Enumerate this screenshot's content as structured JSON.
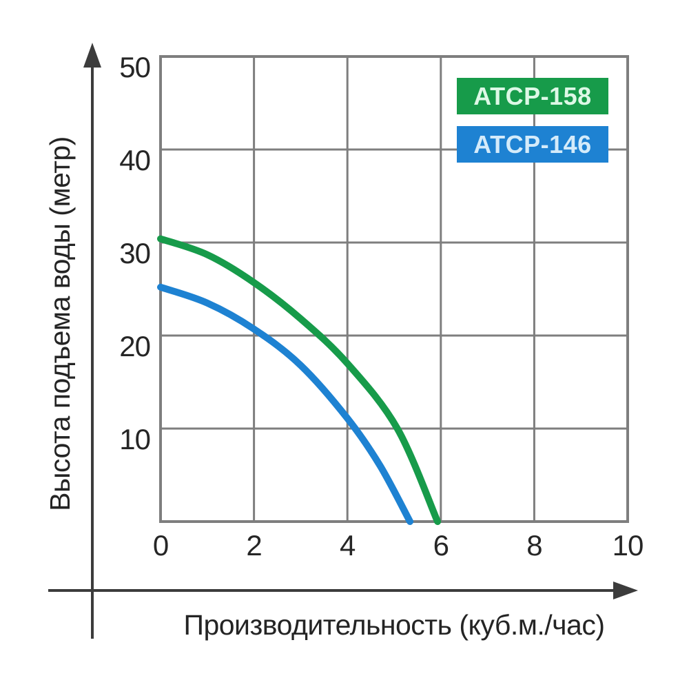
{
  "chart_data": {
    "type": "line",
    "title": "",
    "xlabel": "Производительность (куб.м./час)",
    "ylabel": "Высота подъема воды (метр)",
    "xlim": [
      0,
      10
    ],
    "ylim": [
      0,
      50
    ],
    "x_ticks": [
      0,
      2,
      4,
      6,
      8,
      10
    ],
    "y_ticks": [
      50,
      40,
      30,
      20,
      10
    ],
    "grid": true,
    "grid_step": {
      "x": 2,
      "y": 10
    },
    "legend_position": "top-right-inside",
    "series": [
      {
        "name": "ATCP-158",
        "color": "#179b4a",
        "label_text_color": "#ddf8e6",
        "points": [
          [
            0,
            30.4
          ],
          [
            1,
            28.7
          ],
          [
            2,
            25.7
          ],
          [
            3,
            21.8
          ],
          [
            4,
            17.0
          ],
          [
            5.07,
            10.0
          ],
          [
            5.93,
            0
          ]
        ]
      },
      {
        "name": "ATCP-146",
        "color": "#1e82d2",
        "label_text_color": "#d4ebfa",
        "points": [
          [
            0,
            25.2
          ],
          [
            1,
            23.5
          ],
          [
            2,
            20.7
          ],
          [
            3,
            16.8
          ],
          [
            4,
            11.1
          ],
          [
            4.7,
            6.0
          ],
          [
            5.34,
            0
          ]
        ]
      }
    ]
  },
  "style": {
    "grid_color": "#7e7e7e",
    "plot_border_color": "#7e7e7e",
    "axis_arrow_color": "#3c3c3c",
    "tick_text_color": "#262626",
    "background": "#ffffff"
  }
}
